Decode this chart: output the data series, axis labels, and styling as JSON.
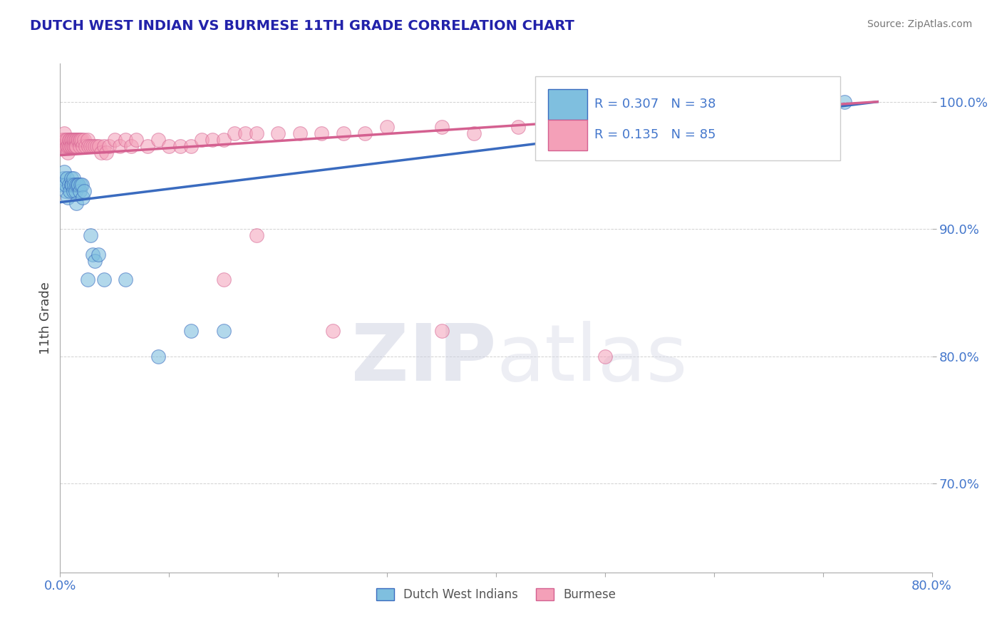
{
  "title": "DUTCH WEST INDIAN VS BURMESE 11TH GRADE CORRELATION CHART",
  "source": "Source: ZipAtlas.com",
  "ylabel": "11th Grade",
  "y_ticks_labels": [
    "70.0%",
    "80.0%",
    "90.0%",
    "100.0%"
  ],
  "y_tick_vals": [
    0.7,
    0.8,
    0.9,
    1.0
  ],
  "x_lim": [
    0.0,
    0.8
  ],
  "y_lim": [
    0.63,
    1.03
  ],
  "x_tick_positions": [
    0.0,
    0.1,
    0.2,
    0.3,
    0.4,
    0.5,
    0.6,
    0.7,
    0.8
  ],
  "x_tick_labels": [
    "0.0%",
    "",
    "",
    "",
    "",
    "",
    "",
    "",
    "80.0%"
  ],
  "legend_r1": "0.307",
  "legend_n1": "38",
  "legend_r2": "0.135",
  "legend_n2": "85",
  "blue_scatter_color": "#7fbfdf",
  "pink_scatter_color": "#f4a0b8",
  "blue_line_color": "#3a6bbf",
  "pink_line_color": "#d46090",
  "tick_label_color": "#4477cc",
  "title_color": "#2222aa",
  "ylabel_color": "#444444",
  "watermark_color": "#dde0ee",
  "legend_text_color": "#4477cc",
  "dutch_west_indian_x": [
    0.002,
    0.003,
    0.004,
    0.005,
    0.005,
    0.006,
    0.007,
    0.008,
    0.009,
    0.01,
    0.01,
    0.011,
    0.012,
    0.012,
    0.013,
    0.014,
    0.015,
    0.015,
    0.016,
    0.017,
    0.018,
    0.019,
    0.02,
    0.021,
    0.022,
    0.025,
    0.028,
    0.03,
    0.032,
    0.035,
    0.04,
    0.06,
    0.09,
    0.12,
    0.15,
    0.5,
    0.68,
    0.72
  ],
  "dutch_west_indian_y": [
    0.935,
    0.94,
    0.945,
    0.93,
    0.935,
    0.94,
    0.925,
    0.935,
    0.93,
    0.935,
    0.94,
    0.935,
    0.93,
    0.94,
    0.935,
    0.93,
    0.935,
    0.92,
    0.935,
    0.935,
    0.93,
    0.935,
    0.935,
    0.925,
    0.93,
    0.86,
    0.895,
    0.88,
    0.875,
    0.88,
    0.86,
    0.86,
    0.8,
    0.82,
    0.82,
    0.97,
    0.98,
    1.0
  ],
  "burmese_x": [
    0.001,
    0.002,
    0.003,
    0.004,
    0.004,
    0.005,
    0.005,
    0.006,
    0.006,
    0.007,
    0.007,
    0.008,
    0.008,
    0.009,
    0.009,
    0.01,
    0.01,
    0.011,
    0.011,
    0.012,
    0.012,
    0.013,
    0.013,
    0.014,
    0.014,
    0.015,
    0.015,
    0.016,
    0.017,
    0.018,
    0.018,
    0.019,
    0.02,
    0.021,
    0.022,
    0.023,
    0.025,
    0.026,
    0.028,
    0.03,
    0.032,
    0.034,
    0.036,
    0.038,
    0.04,
    0.042,
    0.045,
    0.05,
    0.055,
    0.06,
    0.065,
    0.07,
    0.08,
    0.09,
    0.1,
    0.11,
    0.12,
    0.13,
    0.14,
    0.15,
    0.16,
    0.17,
    0.18,
    0.2,
    0.22,
    0.24,
    0.26,
    0.28,
    0.3,
    0.35,
    0.38,
    0.42,
    0.45,
    0.48,
    0.52,
    0.55,
    0.58,
    0.62,
    0.65,
    0.68,
    0.15,
    0.18,
    0.25,
    0.35,
    0.5
  ],
  "burmese_y": [
    0.965,
    0.97,
    0.97,
    0.965,
    0.975,
    0.965,
    0.97,
    0.965,
    0.97,
    0.96,
    0.965,
    0.965,
    0.97,
    0.965,
    0.97,
    0.97,
    0.965,
    0.97,
    0.965,
    0.97,
    0.965,
    0.965,
    0.97,
    0.97,
    0.965,
    0.97,
    0.965,
    0.97,
    0.97,
    0.965,
    0.97,
    0.97,
    0.97,
    0.965,
    0.97,
    0.965,
    0.97,
    0.965,
    0.965,
    0.965,
    0.965,
    0.965,
    0.965,
    0.96,
    0.965,
    0.96,
    0.965,
    0.97,
    0.965,
    0.97,
    0.965,
    0.97,
    0.965,
    0.97,
    0.965,
    0.965,
    0.965,
    0.97,
    0.97,
    0.97,
    0.975,
    0.975,
    0.975,
    0.975,
    0.975,
    0.975,
    0.975,
    0.975,
    0.98,
    0.98,
    0.975,
    0.98,
    0.985,
    0.985,
    0.988,
    0.99,
    0.99,
    0.992,
    0.992,
    0.995,
    0.86,
    0.895,
    0.82,
    0.82,
    0.8
  ]
}
